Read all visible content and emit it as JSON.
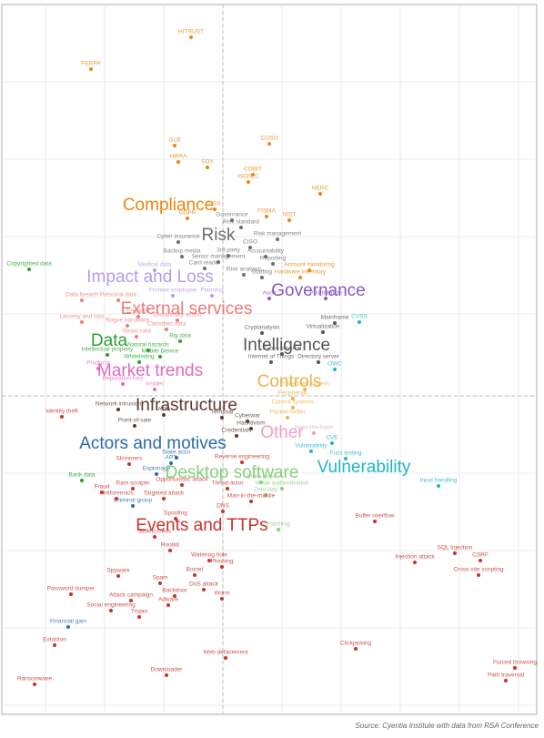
{
  "chart_data": {
    "type": "scatter",
    "source": "Source: Cyentia Institute with data from RSA Conference",
    "xlim": [
      2,
      590
    ],
    "ylim": [
      0,
      780
    ],
    "xticks": [
      50,
      115,
      180,
      245,
      310,
      375,
      440,
      505,
      570
    ],
    "yticks": [
      10,
      95,
      180,
      265,
      350,
      440,
      525,
      610,
      695
    ],
    "xcenter": 245,
    "ycenter": 350,
    "grid": true,
    "series": [
      {
        "name": "Compliance",
        "color": "#e8870e",
        "labels": [
          "HITRUST",
          "FERPA",
          "GLB",
          "COSO",
          "HIPAA",
          "SOX",
          "COBIT",
          "ISO/IEC",
          "NIST",
          "FISMA",
          "GDPR",
          "DSS",
          "NERC",
          "Account monitoring",
          "Hardware inventory"
        ],
        "x": [
          210,
          100,
          192,
          296,
          196,
          228,
          278,
          273,
          318,
          293,
          206,
          236,
          352,
          340,
          330
        ],
        "values": [
          744,
          709,
          625,
          627,
          607,
          601,
          593,
          585,
          543,
          547,
          545,
          555,
          572,
          488,
          480
        ]
      },
      {
        "name": "Risk",
        "color": "#6e6e6e",
        "labels": [
          "Governance",
          "Risk standard",
          "Risk management",
          "Cyber insurance",
          "CISO",
          "3rd party",
          "Accountability",
          "Backup media",
          "Senior management",
          "Reporting",
          "Card reader",
          "Risk analysis",
          "Staffing"
        ],
        "x": [
          255,
          265,
          305,
          196,
          275,
          251,
          292,
          200,
          240,
          300,
          225,
          268,
          288
        ],
        "values": [
          543,
          535,
          522,
          519,
          513,
          504,
          503,
          503,
          497,
          495,
          490,
          483,
          480
        ]
      },
      {
        "name": "Impact and Loss",
        "color": "#b69ce0",
        "labels": [
          "Medical data",
          "Planning",
          "Frontier employee"
        ],
        "x": [
          170,
          233,
          190
        ],
        "values": [
          488,
          460,
          460
        ]
      },
      {
        "name": "Governance",
        "color": "#8a58c0",
        "labels": [
          "Prioritization",
          "Audit"
        ],
        "x": [
          358,
          296
        ],
        "values": [
          457,
          457
        ]
      },
      {
        "name": "External services",
        "color": "#f07a7a",
        "labels": [
          "Data breach",
          "Personal data",
          "Larceny and loss",
          "Endpoint",
          "Rogue hardware",
          "Smart card",
          "Classified data",
          "Disciplinary action"
        ],
        "x": [
          90,
          130,
          90,
          152,
          140,
          150,
          183,
          195
        ],
        "values": [
          455,
          455,
          431,
          437,
          427,
          415,
          423,
          433
        ]
      },
      {
        "name": "Data",
        "color": "#2aa030",
        "labels": [
          "Copyrighted data",
          "Intellectual property",
          "Natural hazards",
          "Big data",
          "Mobile Device",
          "Whitelisting",
          "Bank data"
        ],
        "x": [
          32,
          118,
          163,
          198,
          176,
          153,
          90
        ],
        "values": [
          489,
          395,
          400,
          410,
          393,
          387,
          257
        ]
      },
      {
        "name": "Intelligence",
        "color": "#555555",
        "labels": [
          "Virtualization",
          "Mainframe",
          "Cyber-physical",
          "Internet of Things",
          "Directory server",
          "Cryptanalysis"
        ],
        "x": [
          355,
          368,
          310,
          298,
          350,
          288
        ],
        "values": [
          420,
          430,
          396,
          387,
          387,
          419
        ]
      },
      {
        "name": "Market trends",
        "color": "#e06bbf",
        "labels": [
          "Insider",
          "Reputation loss",
          "Products"
        ],
        "x": [
          170,
          135,
          108
        ],
        "values": [
          357,
          363,
          380
        ]
      },
      {
        "name": "Controls",
        "color": "#e6b44a",
        "labels": [
          "Embedded system",
          "Peripherals",
          "Packet sniffer",
          "Control systems"
        ],
        "x": [
          335,
          322,
          316,
          322
        ],
        "values": [
          357,
          347,
          326,
          337
        ]
      },
      {
        "name": "Infrastructure",
        "color": "#5c3b2e",
        "labels": [
          "ATM",
          "Network intrusion",
          "Terminal",
          "Cyberwar",
          "Hacktivism",
          "Credentials",
          "Point-of-sale"
        ],
        "x": [
          180,
          130,
          244,
          272,
          276,
          260,
          148
        ],
        "values": [
          329,
          335,
          326,
          322,
          314,
          306,
          317
        ]
      },
      {
        "name": "Other",
        "color": "#f0a0c8",
        "labels": [
          "Pass-the-hash"
        ],
        "x": [
          345
        ],
        "values": [
          309
        ]
      },
      {
        "name": "Actors and motives",
        "color": "#2a6bad",
        "labels": [
          "State actor",
          "APT",
          "Espionage",
          "Criminal group",
          "Financial gain"
        ],
        "x": [
          194,
          188,
          172,
          146,
          75
        ],
        "values": [
          282,
          276,
          264,
          229,
          96
        ]
      },
      {
        "name": "Desktop software",
        "color": "#86d07a",
        "labels": [
          "Zero-day",
          "Weak authentication",
          "Brute force",
          "Patching"
        ],
        "x": [
          292,
          310,
          287,
          306
        ],
        "values": [
          241,
          248,
          255,
          203
        ]
      },
      {
        "name": "Vulnerability",
        "color": "#20b5c8",
        "labels": [
          "CVE",
          "Vulnerability",
          "Fuzz testing",
          "Input handling",
          "CVSS",
          "OWC"
        ],
        "x": [
          365,
          342,
          380,
          482,
          395,
          368
        ],
        "values": [
          298,
          289,
          281,
          251,
          431,
          379
        ]
      },
      {
        "name": "Events and TTPs",
        "color": "#c8322e",
        "labels": [
          "Identity theft",
          "Skimmers",
          "Fraud",
          "Antiforensics",
          "Ram scraper",
          "Targeted attack",
          "Opportunistic attack",
          "Reverse engineering",
          "Threat actor",
          "Man-in-the-middle",
          "DNS",
          "Spoofing",
          "Stolen creds",
          "Buffer overflow",
          "SQL Injection",
          "CSRF",
          "Injection attack",
          "Cross-site scripting",
          "Rootkit",
          "Watering hole",
          "Phishing",
          "Botnet",
          "Spyware",
          "Spam",
          "DoS attack",
          "Backdoor",
          "Worm",
          "Password dumper",
          "Attack campaign",
          "Adware",
          "Social engineering",
          "Trojan",
          "Extortion",
          "Web defacement",
          "Clickjacking",
          "Downloader",
          "Forced browsing",
          "Path traversal",
          "Ransomware"
        ],
        "x": [
          68,
          142,
          112,
          128,
          146,
          180,
          200,
          266,
          250,
          276,
          245,
          193,
          170,
          412,
          500,
          528,
          456,
          526,
          187,
          230,
          244,
          214,
          130,
          176,
          224,
          192,
          244,
          78,
          144,
          185,
          122,
          153,
          60,
          248,
          391,
          183,
          566,
          556,
          38
        ],
        "values": [
          327,
          275,
          244,
          237,
          248,
          237,
          252,
          277,
          248,
          234,
          223,
          215,
          195,
          212,
          177,
          169,
          167,
          153,
          180,
          169,
          162,
          153,
          152,
          144,
          137,
          130,
          127,
          132,
          125,
          120,
          114,
          107,
          76,
          62,
          72,
          43,
          51,
          37,
          33
        ]
      }
    ]
  }
}
